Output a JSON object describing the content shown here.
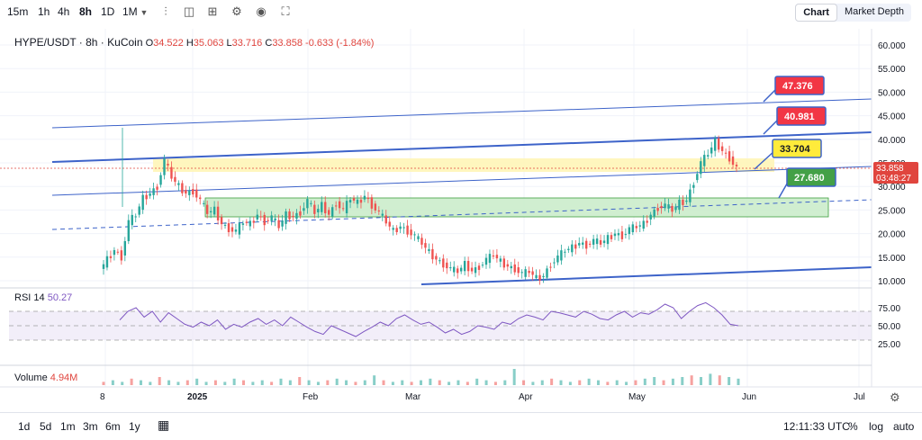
{
  "toolbar": {
    "timeframes": [
      "15m",
      "1h",
      "4h",
      "8h",
      "1D",
      "1M"
    ],
    "active_timeframe": "8h",
    "view_tabs": [
      "Chart",
      "Market Depth"
    ],
    "active_view": "Chart"
  },
  "legend": {
    "symbol": "HYPE/USDT · 8h · KuCoin",
    "open_key": "O",
    "open": "34.522",
    "high_key": "H",
    "high": "35.063",
    "low_key": "L",
    "low": "33.716",
    "close_key": "C",
    "close": "33.858",
    "change": "-0.633 (-1.84%)"
  },
  "rsi": {
    "label": "RSI 14",
    "value": "50.27"
  },
  "volume": {
    "label": "Volume",
    "value": "4.94M"
  },
  "bottom": {
    "ranges": [
      "1d",
      "5d",
      "1m",
      "3m",
      "6m",
      "1y"
    ],
    "time": "12:11:33 UTC",
    "percent": "%",
    "log": "log",
    "auto": "auto"
  },
  "colors": {
    "up": "#26a69a",
    "down": "#ef5350",
    "channel": "#3d63c9",
    "yellow_zone": "#fff4b3",
    "green_zone": "#c8ebc8",
    "rsi": "#7e57c2",
    "rsi_band": "#ede7f6"
  },
  "chart_data": {
    "type": "candlestick",
    "title": "HYPE/USDT · 8h · KuCoin",
    "y_ticks": [
      "60.000",
      "55.000",
      "50.000",
      "45.000",
      "40.000",
      "35.000",
      "30.000",
      "25.000",
      "20.000",
      "15.000",
      "10.000"
    ],
    "y_range": [
      9,
      63
    ],
    "x_ticks": [
      "8",
      "2025",
      "Feb",
      "Mar",
      "Apr",
      "May",
      "Jun",
      "Jul"
    ],
    "last_price": "33.858",
    "countdown": "03:48:27",
    "price_labels": [
      {
        "value": "47.376",
        "kind": "red"
      },
      {
        "value": "40.981",
        "kind": "red"
      },
      {
        "value": "33.704",
        "kind": "yellow"
      },
      {
        "value": "27.680",
        "kind": "green"
      }
    ],
    "zones": [
      {
        "name": "yellow",
        "from_price": 33.5,
        "to_price": 36.0
      },
      {
        "name": "green",
        "from_price": 23.5,
        "to_price": 27.5
      }
    ],
    "price_path": [
      [
        0,
        12.5
      ],
      [
        2,
        14.5
      ],
      [
        4,
        16.5
      ],
      [
        6,
        15.0
      ],
      [
        8,
        22.5
      ],
      [
        10,
        24.0
      ],
      [
        12,
        27.5
      ],
      [
        14,
        28.5
      ],
      [
        16,
        30.0
      ],
      [
        18,
        35.5
      ],
      [
        20,
        32.0
      ],
      [
        22,
        30.0
      ],
      [
        24,
        28.5
      ],
      [
        26,
        29.0
      ],
      [
        28,
        27.0
      ],
      [
        30,
        24.5
      ],
      [
        32,
        25.0
      ],
      [
        34,
        22.0
      ],
      [
        36,
        21.0
      ],
      [
        38,
        20.5
      ],
      [
        40,
        22.5
      ],
      [
        42,
        22.0
      ],
      [
        44,
        24.0
      ],
      [
        46,
        22.5
      ],
      [
        48,
        23.5
      ],
      [
        50,
        21.5
      ],
      [
        52,
        24.0
      ],
      [
        54,
        23.5
      ],
      [
        56,
        24.5
      ],
      [
        58,
        27.0
      ],
      [
        60,
        24.5
      ],
      [
        62,
        26.0
      ],
      [
        64,
        24.0
      ],
      [
        66,
        26.5
      ],
      [
        68,
        25.0
      ],
      [
        70,
        27.5
      ],
      [
        72,
        26.5
      ],
      [
        74,
        28.0
      ],
      [
        76,
        26.0
      ],
      [
        78,
        24.5
      ],
      [
        80,
        22.5
      ],
      [
        82,
        20.5
      ],
      [
        84,
        21.5
      ],
      [
        86,
        20.5
      ],
      [
        88,
        19.5
      ],
      [
        90,
        18.0
      ],
      [
        92,
        16.0
      ],
      [
        94,
        14.5
      ],
      [
        96,
        13.5
      ],
      [
        98,
        12.5
      ],
      [
        100,
        12.0
      ],
      [
        102,
        13.5
      ],
      [
        104,
        12.0
      ],
      [
        106,
        13.0
      ],
      [
        108,
        14.5
      ],
      [
        110,
        15.5
      ],
      [
        112,
        14.0
      ],
      [
        114,
        13.0
      ],
      [
        116,
        12.5
      ],
      [
        118,
        11.5
      ],
      [
        120,
        12.0
      ],
      [
        122,
        10.5
      ],
      [
        124,
        11.0
      ],
      [
        126,
        13.5
      ],
      [
        128,
        15.0
      ],
      [
        130,
        16.5
      ],
      [
        132,
        17.0
      ],
      [
        134,
        18.0
      ],
      [
        136,
        17.5
      ],
      [
        138,
        18.5
      ],
      [
        140,
        18.0
      ],
      [
        142,
        19.0
      ],
      [
        144,
        20.0
      ],
      [
        146,
        19.5
      ],
      [
        148,
        21.0
      ],
      [
        150,
        21.5
      ],
      [
        152,
        22.0
      ],
      [
        154,
        24.0
      ],
      [
        156,
        25.5
      ],
      [
        158,
        26.0
      ],
      [
        160,
        25.0
      ],
      [
        162,
        26.5
      ],
      [
        164,
        27.0
      ],
      [
        166,
        31.0
      ],
      [
        168,
        35.0
      ],
      [
        170,
        37.0
      ],
      [
        172,
        39.5
      ],
      [
        174,
        37.5
      ],
      [
        176,
        36.0
      ],
      [
        178,
        33.9
      ]
    ],
    "rsi_series": {
      "label": "RSI 14",
      "ticks": [
        "75.00",
        "50.00",
        "25.00"
      ],
      "values": [
        58,
        70,
        75,
        62,
        70,
        55,
        68,
        60,
        52,
        48,
        55,
        50,
        58,
        45,
        52,
        48,
        55,
        60,
        52,
        58,
        50,
        62,
        55,
        48,
        42,
        38,
        50,
        45,
        40,
        35,
        42,
        48,
        55,
        50,
        60,
        65,
        58,
        52,
        55,
        48,
        40,
        45,
        38,
        42,
        50,
        48,
        45,
        55,
        52,
        60,
        65,
        62,
        58,
        70,
        68,
        65,
        62,
        70,
        66,
        60,
        58,
        65,
        70,
        62,
        68,
        66,
        72,
        80,
        75,
        60,
        70,
        78,
        82,
        75,
        65,
        52,
        50
      ]
    },
    "volume_series": {
      "label": "Volume",
      "values": [
        2,
        3,
        2,
        4,
        3,
        2,
        5,
        3,
        2,
        3,
        4,
        2,
        3,
        2,
        4,
        3,
        2,
        3,
        2,
        4,
        3,
        5,
        3,
        2,
        3,
        4,
        3,
        2,
        3,
        6,
        3,
        2,
        3,
        2,
        3,
        4,
        3,
        2,
        3,
        2,
        4,
        3,
        2,
        3,
        10,
        3,
        2,
        3,
        4,
        3,
        2,
        3,
        4,
        3,
        2,
        3,
        2,
        3,
        4,
        5,
        3,
        4,
        5,
        6,
        5,
        7,
        6,
        5,
        4
      ]
    }
  }
}
